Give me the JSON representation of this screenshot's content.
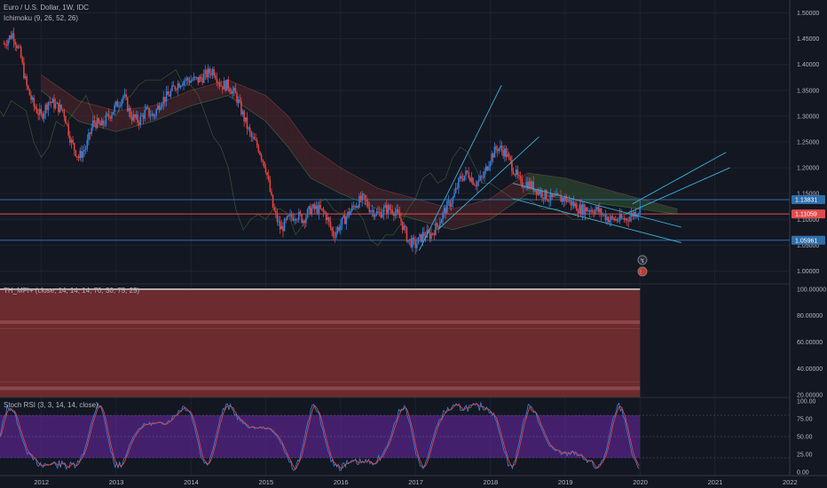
{
  "legends": {
    "main_title": "Euro / U.S. Dollar, 1W, IDC",
    "ichimoku": "Ichimoku (9, 26, 52, 26)",
    "mfi": "TH_MFI+ (close, 14, 14, 14, 70, 30, 75, 25)",
    "stoch": "Stoch RSI (3, 3, 14, 14, close)"
  },
  "chart_data": [
    {
      "type": "candlestick",
      "title": "Euro / U.S. Dollar, 1W, IDC",
      "ylim": [
        0.975,
        1.525
      ],
      "y_ticks": [
        "1.50000",
        "1.45000",
        "1.40000",
        "1.35000",
        "1.30000",
        "1.25000",
        "1.20000",
        "1.15000",
        "1.10000",
        "1.05000",
        "1.00000"
      ],
      "x_ticks": [
        "2012",
        "2013",
        "2014",
        "2015",
        "2016",
        "2017",
        "2018",
        "2019",
        "2020",
        "2021",
        "2022"
      ],
      "price_tags": [
        {
          "label": "1.13831",
          "value": 1.13831,
          "color": "#2f6ea8"
        },
        {
          "label": "1.11059",
          "value": 1.11059,
          "color": "#e04b4b"
        },
        {
          "label": "1.05961",
          "value": 1.05961,
          "color": "#2f6ea8"
        }
      ],
      "horizontal_lines": [
        1.13831,
        1.11059,
        1.05961
      ],
      "price_path": [
        [
          2011.5,
          1.44
        ],
        [
          2011.62,
          1.46
        ],
        [
          2011.72,
          1.42
        ],
        [
          2011.8,
          1.36
        ],
        [
          2011.9,
          1.32
        ],
        [
          2012.0,
          1.3
        ],
        [
          2012.1,
          1.33
        ],
        [
          2012.2,
          1.32
        ],
        [
          2012.3,
          1.31
        ],
        [
          2012.4,
          1.25
        ],
        [
          2012.5,
          1.22
        ],
        [
          2012.6,
          1.24
        ],
        [
          2012.7,
          1.29
        ],
        [
          2012.8,
          1.28
        ],
        [
          2012.9,
          1.3
        ],
        [
          2013.0,
          1.32
        ],
        [
          2013.1,
          1.34
        ],
        [
          2013.2,
          1.3
        ],
        [
          2013.3,
          1.29
        ],
        [
          2013.4,
          1.31
        ],
        [
          2013.5,
          1.3
        ],
        [
          2013.6,
          1.33
        ],
        [
          2013.7,
          1.34
        ],
        [
          2013.8,
          1.36
        ],
        [
          2013.9,
          1.37
        ],
        [
          2014.0,
          1.37
        ],
        [
          2014.1,
          1.37
        ],
        [
          2014.2,
          1.38
        ],
        [
          2014.3,
          1.39
        ],
        [
          2014.4,
          1.36
        ],
        [
          2014.5,
          1.36
        ],
        [
          2014.6,
          1.34
        ],
        [
          2014.7,
          1.3
        ],
        [
          2014.8,
          1.26
        ],
        [
          2014.9,
          1.24
        ],
        [
          2015.0,
          1.2
        ],
        [
          2015.1,
          1.12
        ],
        [
          2015.2,
          1.08
        ],
        [
          2015.3,
          1.1
        ],
        [
          2015.4,
          1.11
        ],
        [
          2015.5,
          1.1
        ],
        [
          2015.6,
          1.12
        ],
        [
          2015.7,
          1.12
        ],
        [
          2015.8,
          1.11
        ],
        [
          2015.9,
          1.07
        ],
        [
          2016.0,
          1.09
        ],
        [
          2016.1,
          1.11
        ],
        [
          2016.2,
          1.13
        ],
        [
          2016.3,
          1.14
        ],
        [
          2016.4,
          1.12
        ],
        [
          2016.5,
          1.11
        ],
        [
          2016.6,
          1.12
        ],
        [
          2016.7,
          1.12
        ],
        [
          2016.8,
          1.1
        ],
        [
          2016.9,
          1.06
        ],
        [
          2017.0,
          1.05
        ],
        [
          2017.1,
          1.07
        ],
        [
          2017.2,
          1.07
        ],
        [
          2017.3,
          1.09
        ],
        [
          2017.4,
          1.12
        ],
        [
          2017.5,
          1.14
        ],
        [
          2017.6,
          1.18
        ],
        [
          2017.7,
          1.19
        ],
        [
          2017.8,
          1.17
        ],
        [
          2017.9,
          1.18
        ],
        [
          2018.0,
          1.22
        ],
        [
          2018.1,
          1.24
        ],
        [
          2018.2,
          1.23
        ],
        [
          2018.3,
          1.2
        ],
        [
          2018.4,
          1.17
        ],
        [
          2018.5,
          1.17
        ],
        [
          2018.6,
          1.16
        ],
        [
          2018.7,
          1.15
        ],
        [
          2018.8,
          1.14
        ],
        [
          2018.9,
          1.14
        ],
        [
          2019.0,
          1.14
        ],
        [
          2019.1,
          1.13
        ],
        [
          2019.2,
          1.12
        ],
        [
          2019.3,
          1.12
        ],
        [
          2019.4,
          1.12
        ],
        [
          2019.5,
          1.11
        ],
        [
          2019.6,
          1.1
        ],
        [
          2019.7,
          1.1
        ],
        [
          2019.8,
          1.1
        ],
        [
          2019.9,
          1.11
        ],
        [
          2020.0,
          1.12
        ]
      ],
      "cloud_path_upper": [
        [
          2012.0,
          1.38
        ],
        [
          2012.5,
          1.33
        ],
        [
          2013.0,
          1.31
        ],
        [
          2013.5,
          1.32
        ],
        [
          2014.0,
          1.35
        ],
        [
          2014.5,
          1.37
        ],
        [
          2015.0,
          1.34
        ],
        [
          2015.3,
          1.3
        ],
        [
          2015.6,
          1.24
        ],
        [
          2016.0,
          1.2
        ],
        [
          2016.5,
          1.16
        ],
        [
          2017.0,
          1.14
        ],
        [
          2017.5,
          1.12
        ],
        [
          2018.0,
          1.14
        ],
        [
          2018.5,
          1.19
        ],
        [
          2019.0,
          1.18
        ],
        [
          2019.5,
          1.16
        ],
        [
          2020.0,
          1.14
        ],
        [
          2020.5,
          1.12
        ]
      ],
      "cloud_path_lower": [
        [
          2012.0,
          1.35
        ],
        [
          2012.5,
          1.29
        ],
        [
          2013.0,
          1.27
        ],
        [
          2013.5,
          1.29
        ],
        [
          2014.0,
          1.32
        ],
        [
          2014.5,
          1.34
        ],
        [
          2015.0,
          1.29
        ],
        [
          2015.3,
          1.24
        ],
        [
          2015.6,
          1.18
        ],
        [
          2016.0,
          1.15
        ],
        [
          2016.5,
          1.12
        ],
        [
          2017.0,
          1.1
        ],
        [
          2017.5,
          1.08
        ],
        [
          2018.0,
          1.1
        ],
        [
          2018.5,
          1.15
        ],
        [
          2019.0,
          1.14
        ],
        [
          2019.5,
          1.13
        ],
        [
          2020.0,
          1.12
        ],
        [
          2020.5,
          1.11
        ]
      ],
      "trendlines": [
        [
          [
            2017.05,
            1.04
          ],
          [
            2018.15,
            1.36
          ]
        ],
        [
          [
            2017.3,
            1.08
          ],
          [
            2018.65,
            1.26
          ]
        ],
        [
          [
            2019.9,
            1.13
          ],
          [
            2021.15,
            1.23
          ]
        ],
        [
          [
            2019.8,
            1.11
          ],
          [
            2021.2,
            1.2
          ]
        ],
        [
          [
            2018.3,
            1.17
          ],
          [
            2020.55,
            1.085
          ]
        ],
        [
          [
            2018.3,
            1.14
          ],
          [
            2020.55,
            1.055
          ]
        ]
      ]
    },
    {
      "type": "area",
      "title": "TH_MFI+ (close, 14, 14, 14, 70, 30, 75, 25)",
      "ylim": [
        18,
        104
      ],
      "y_ticks": [
        "100.00000",
        "80.00000",
        "60.00000",
        "40.00000",
        "20.00000"
      ],
      "levels": [
        100,
        75,
        70,
        30,
        25
      ],
      "x_range_data": [
        2011.45,
        2020.0
      ]
    },
    {
      "type": "line",
      "title": "Stoch RSI (3, 3, 14, 14, close)",
      "ylim": [
        -5,
        105
      ],
      "y_ticks": [
        "100.00",
        "75.00",
        "50.00",
        "25.00",
        "0.00"
      ],
      "band": [
        20,
        80
      ],
      "x_range_data": [
        2011.45,
        2020.0
      ]
    }
  ]
}
